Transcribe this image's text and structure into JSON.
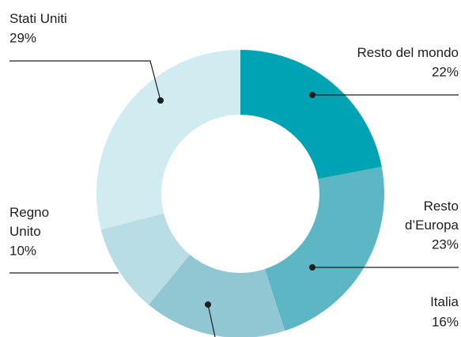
{
  "chart_data": {
    "type": "donut",
    "categories": [
      "Resto del mondo",
      "Resto d’Europa",
      "Italia",
      "Regno Unito",
      "Stati Uniti"
    ],
    "values": [
      22,
      23,
      16,
      10,
      29
    ],
    "value_labels": [
      "22%",
      "23%",
      "16%",
      "10%",
      "29%"
    ],
    "colors": [
      "#00a3b4",
      "#5cb6c4",
      "#91c7d3",
      "#b9dde4",
      "#d0ecf0"
    ]
  }
}
